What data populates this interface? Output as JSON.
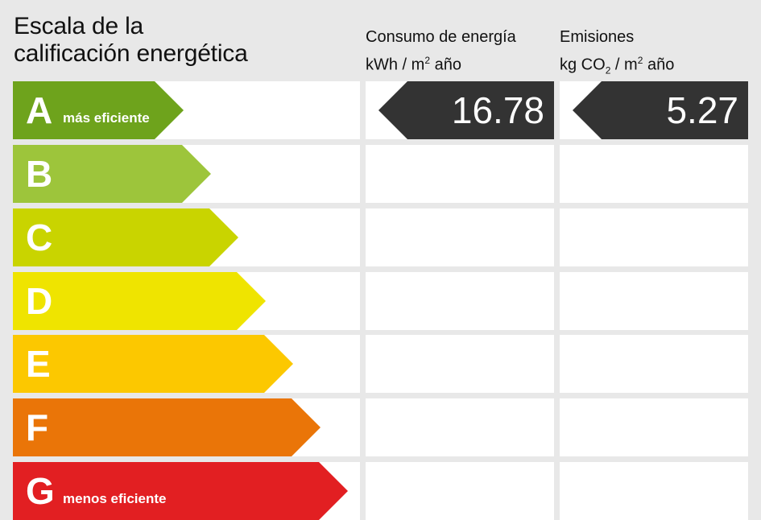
{
  "title_line1": "Escala de la",
  "title_line2": "calificación energética",
  "consumo": {
    "label": "Consumo de energía",
    "unit_pre": "kWh / m",
    "unit_sup": "2",
    "unit_post": " año",
    "value": "16.78",
    "rating": "A"
  },
  "emisiones": {
    "label": "Emisiones",
    "unit_pre": "kg CO",
    "unit_sub": "2",
    "unit_mid": " / m",
    "unit_sup": "2",
    "unit_post": " año",
    "value": "5.27",
    "rating": "A"
  },
  "classes": [
    {
      "letter": "A",
      "note": "más eficiente",
      "color": "#6ea31c"
    },
    {
      "letter": "B",
      "note": "",
      "color": "#9dc53b"
    },
    {
      "letter": "C",
      "note": "",
      "color": "#c9d400"
    },
    {
      "letter": "D",
      "note": "",
      "color": "#efe400"
    },
    {
      "letter": "E",
      "note": "",
      "color": "#fcc800"
    },
    {
      "letter": "F",
      "note": "",
      "color": "#ea7508"
    },
    {
      "letter": "G",
      "note": "menos eficiente",
      "color": "#e21f22"
    }
  ]
}
